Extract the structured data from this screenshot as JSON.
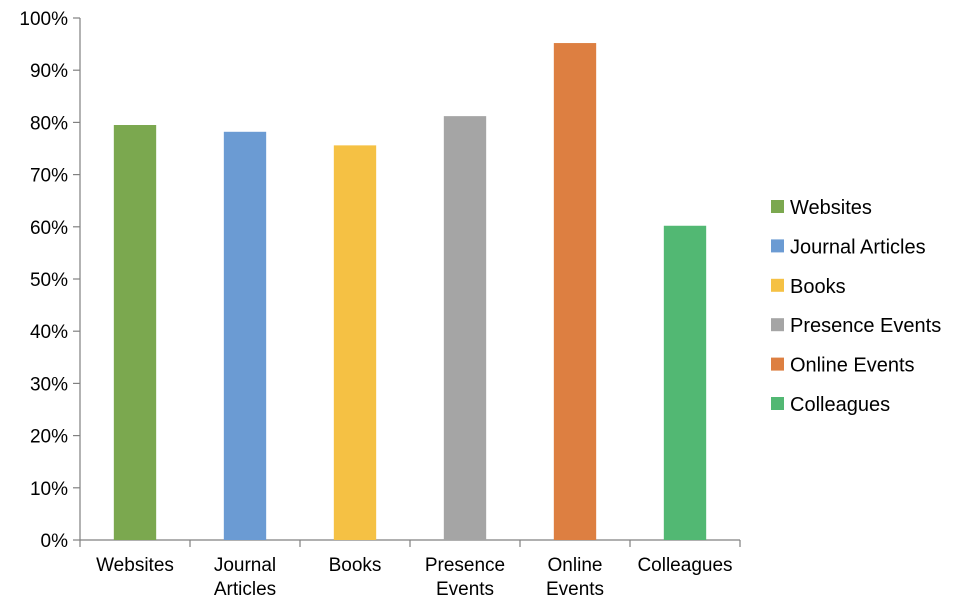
{
  "chart_data": {
    "type": "bar",
    "categories": [
      "Websites",
      "Journal Articles",
      "Books",
      "Presence Events",
      "Online Events",
      "Colleagues"
    ],
    "category_tick_labels": [
      [
        "Websites"
      ],
      [
        "Journal",
        "Articles"
      ],
      [
        "Books"
      ],
      [
        "Presence",
        "Events"
      ],
      [
        "Online",
        "Events"
      ],
      [
        "Colleagues"
      ]
    ],
    "values": [
      79.5,
      78.2,
      75.6,
      81.2,
      95.2,
      60.2
    ],
    "colors": [
      "#7ba84f",
      "#6b9bd3",
      "#f5c144",
      "#a5a5a5",
      "#dd7f41",
      "#52b873"
    ],
    "ylim": [
      0,
      100
    ],
    "yticks": [
      0,
      10,
      20,
      30,
      40,
      50,
      60,
      70,
      80,
      90,
      100
    ],
    "ytick_labels": [
      "0%",
      "10%",
      "20%",
      "30%",
      "40%",
      "50%",
      "60%",
      "70%",
      "80%",
      "90%",
      "100%"
    ],
    "grid": false,
    "legend": {
      "placement": "right",
      "entries": [
        "Websites",
        "Journal Articles",
        "Books",
        "Presence Events",
        "Online Events",
        "Colleagues"
      ]
    }
  }
}
